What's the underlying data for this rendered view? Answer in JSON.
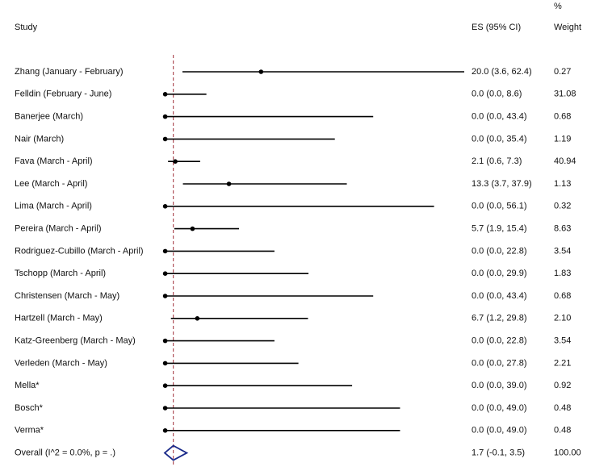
{
  "chart_data": {
    "type": "forest",
    "columns": {
      "study": "Study",
      "es": "ES (95% CI)",
      "weight_top": "%",
      "weight": "Weight"
    },
    "color": "#000000",
    "null_line_color": "#a0303a",
    "studies": [
      {
        "name": "Zhang (January - February)",
        "es": 20.0,
        "lo": 3.6,
        "hi": 62.4,
        "ci_label": "20.0 (3.6, 62.4)",
        "weight": 0.27
      },
      {
        "name": "Felldin (February - June)",
        "es": 0.0,
        "lo": 0.0,
        "hi": 8.6,
        "ci_label": "0.0 (0.0, 8.6)",
        "weight": 31.08
      },
      {
        "name": "Banerjee (March)",
        "es": 0.0,
        "lo": 0.0,
        "hi": 43.4,
        "ci_label": "0.0 (0.0, 43.4)",
        "weight": 0.68
      },
      {
        "name": "Nair (March)",
        "es": 0.0,
        "lo": 0.0,
        "hi": 35.4,
        "ci_label": "0.0 (0.0, 35.4)",
        "weight": 1.19
      },
      {
        "name": "Fava (March - April)",
        "es": 2.1,
        "lo": 0.6,
        "hi": 7.3,
        "ci_label": "2.1 (0.6, 7.3)",
        "weight": 40.94
      },
      {
        "name": "Lee (March - April)",
        "es": 13.3,
        "lo": 3.7,
        "hi": 37.9,
        "ci_label": "13.3 (3.7, 37.9)",
        "weight": 1.13
      },
      {
        "name": "Lima (March - April)",
        "es": 0.0,
        "lo": 0.0,
        "hi": 56.1,
        "ci_label": "0.0 (0.0, 56.1)",
        "weight": 0.32
      },
      {
        "name": "Pereira (March - April)",
        "es": 5.7,
        "lo": 1.9,
        "hi": 15.4,
        "ci_label": "5.7 (1.9, 15.4)",
        "weight": 8.63
      },
      {
        "name": "Rodriguez-Cubillo (March - April)",
        "es": 0.0,
        "lo": 0.0,
        "hi": 22.8,
        "ci_label": "0.0 (0.0, 22.8)",
        "weight": 3.54
      },
      {
        "name": "Tschopp (March - April)",
        "es": 0.0,
        "lo": 0.0,
        "hi": 29.9,
        "ci_label": "0.0 (0.0, 29.9)",
        "weight": 1.83
      },
      {
        "name": "Christensen (March - May)",
        "es": 0.0,
        "lo": 0.0,
        "hi": 43.4,
        "ci_label": "0.0 (0.0, 43.4)",
        "weight": 0.68
      },
      {
        "name": "Hartzell (March - May)",
        "es": 6.7,
        "lo": 1.2,
        "hi": 29.8,
        "ci_label": "6.7 (1.2, 29.8)",
        "weight": {
          "value": 2.1,
          "label": "2.10"
        }
      },
      {
        "name": "Katz-Greenberg (March - May)",
        "es": 0.0,
        "lo": 0.0,
        "hi": 22.8,
        "ci_label": "0.0 (0.0, 22.8)",
        "weight": 3.54
      },
      {
        "name": "Verleden (March - May)",
        "es": 0.0,
        "lo": 0.0,
        "hi": 27.8,
        "ci_label": "0.0 (0.0, 27.8)",
        "weight": 2.21
      },
      {
        "name": "Mella*",
        "es": 0.0,
        "lo": 0.0,
        "hi": 39.0,
        "ci_label": "0.0 (0.0, 39.0)",
        "weight": 0.92
      },
      {
        "name": "Bosch*",
        "es": 0.0,
        "lo": 0.0,
        "hi": 49.0,
        "ci_label": "0.0 (0.0, 49.0)",
        "weight": 0.48
      },
      {
        "name": "Verma*",
        "es": 0.0,
        "lo": 0.0,
        "hi": 49.0,
        "ci_label": "0.0 (0.0, 49.0)",
        "weight": 0.48
      }
    ],
    "overall": {
      "name": "Overall  (I^2 = 0.0%, p = .)",
      "es": 1.7,
      "lo": -0.1,
      "hi": 3.5,
      "ci_label": "1.7 (-0.1, 3.5)",
      "weight": {
        "value": 100,
        "label": "100.00"
      }
    }
  }
}
